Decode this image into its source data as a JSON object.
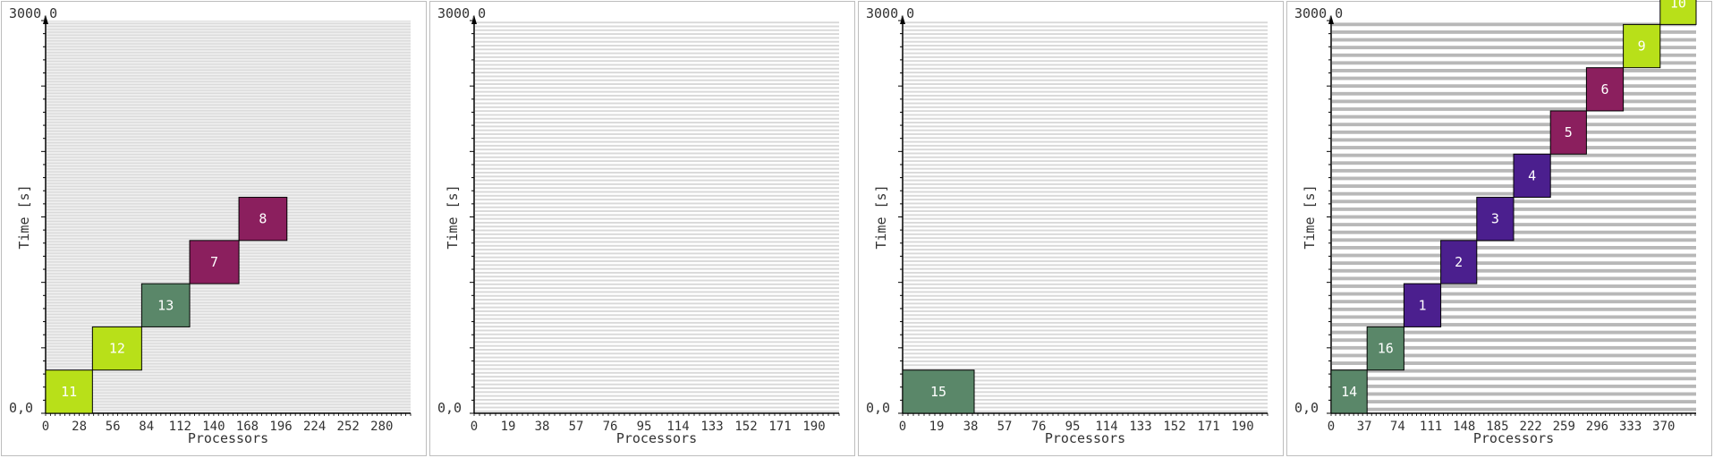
{
  "chart_data": [
    {
      "type": "gantt",
      "xlabel": "Processors",
      "ylabel": "Time [s]",
      "origin_label": "0,0",
      "ymax_label": "3000,0",
      "ylim": [
        0,
        3000
      ],
      "xlim": [
        0,
        304
      ],
      "xticks": [
        0,
        28,
        56,
        84,
        112,
        140,
        168,
        196,
        224,
        252,
        280
      ],
      "row_count": 304,
      "row_color": "#d2d2d2",
      "jobs": [
        {
          "id": "11",
          "x0": 0,
          "x1": 39,
          "y0": 0,
          "y1": 330,
          "color": "#b8e019"
        },
        {
          "id": "12",
          "x0": 39,
          "x1": 80,
          "y0": 330,
          "y1": 660,
          "color": "#b8e019"
        },
        {
          "id": "13",
          "x0": 80,
          "x1": 120,
          "y0": 660,
          "y1": 990,
          "color": "#5a8769"
        },
        {
          "id": "7",
          "x0": 120,
          "x1": 161,
          "y0": 990,
          "y1": 1320,
          "color": "#8b1f5e"
        },
        {
          "id": "8",
          "x0": 161,
          "x1": 201,
          "y0": 1320,
          "y1": 1650,
          "color": "#8b1f5e"
        }
      ]
    },
    {
      "type": "gantt",
      "xlabel": "Processors",
      "ylabel": "Time [s]",
      "origin_label": "0,0",
      "ymax_label": "3000,0",
      "ylim": [
        0,
        3000
      ],
      "xlim": [
        0,
        204
      ],
      "xticks": [
        0,
        19,
        38,
        57,
        76,
        95,
        114,
        133,
        152,
        171,
        190
      ],
      "row_count": 102,
      "row_color": "#d9d9d9",
      "jobs": []
    },
    {
      "type": "gantt",
      "xlabel": "Processors",
      "ylabel": "Time [s]",
      "origin_label": "0,0",
      "ymax_label": "3000,0",
      "ylim": [
        0,
        3000
      ],
      "xlim": [
        0,
        204
      ],
      "xticks": [
        0,
        19,
        38,
        57,
        76,
        95,
        114,
        133,
        152,
        171,
        190
      ],
      "row_count": 102,
      "row_color": "#d9d9d9",
      "jobs": [
        {
          "id": "15",
          "x0": 0,
          "x1": 40,
          "y0": 0,
          "y1": 330,
          "color": "#5a8769"
        }
      ]
    },
    {
      "type": "gantt",
      "xlabel": "Processors",
      "ylabel": "Time [s]",
      "origin_label": "0,0",
      "ymax_label": "3000,0",
      "ylim": [
        0,
        3000
      ],
      "xlim": [
        0,
        406
      ],
      "xticks": [
        0,
        37,
        74,
        111,
        148,
        185,
        222,
        259,
        296,
        333,
        370
      ],
      "row_count": 51,
      "row_color": "#b8b8b8",
      "jobs": [
        {
          "id": "14",
          "x0": 0,
          "x1": 40,
          "y0": 0,
          "y1": 330,
          "color": "#5a8769"
        },
        {
          "id": "16",
          "x0": 40,
          "x1": 81,
          "y0": 330,
          "y1": 660,
          "color": "#5a8769"
        },
        {
          "id": "1",
          "x0": 81,
          "x1": 122,
          "y0": 660,
          "y1": 990,
          "color": "#4b1f8e"
        },
        {
          "id": "2",
          "x0": 122,
          "x1": 162,
          "y0": 990,
          "y1": 1320,
          "color": "#4b1f8e"
        },
        {
          "id": "3",
          "x0": 162,
          "x1": 203,
          "y0": 1320,
          "y1": 1650,
          "color": "#4b1f8e"
        },
        {
          "id": "4",
          "x0": 203,
          "x1": 244,
          "y0": 1650,
          "y1": 1980,
          "color": "#4b1f8e"
        },
        {
          "id": "5",
          "x0": 244,
          "x1": 284,
          "y0": 1980,
          "y1": 2310,
          "color": "#8b1f5e"
        },
        {
          "id": "6",
          "x0": 284,
          "x1": 325,
          "y0": 2310,
          "y1": 2640,
          "color": "#8b1f5e"
        },
        {
          "id": "9",
          "x0": 325,
          "x1": 366,
          "y0": 2640,
          "y1": 2970,
          "color": "#b8e019"
        },
        {
          "id": "10",
          "x0": 366,
          "x1": 406,
          "y0": 2970,
          "y1": 3300,
          "color": "#b8e019"
        }
      ]
    }
  ]
}
